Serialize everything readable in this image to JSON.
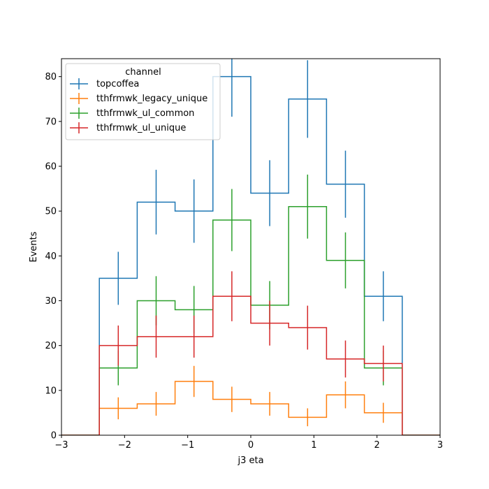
{
  "chart_data": {
    "type": "histogram-step",
    "xlabel": "j3 eta",
    "ylabel": "Events",
    "xlim": [
      -3,
      3
    ],
    "ylim": [
      0,
      84
    ],
    "xticks": [
      -3,
      -2,
      -1,
      0,
      1,
      2,
      3
    ],
    "xtick_labels": [
      "−3",
      "−2",
      "−1",
      "0",
      "1",
      "2",
      "3"
    ],
    "yticks": [
      0,
      10,
      20,
      30,
      40,
      50,
      60,
      70,
      80
    ],
    "ytick_labels": [
      "0",
      "10",
      "20",
      "30",
      "40",
      "50",
      "60",
      "70",
      "80"
    ],
    "bin_edges": [
      -3,
      -2.4,
      -1.8,
      -1.2,
      -0.6,
      0,
      0.6,
      1.2,
      1.8,
      2.4,
      3
    ],
    "legend": {
      "title": "channel",
      "placement": "upper-left"
    },
    "series": [
      {
        "name": "topcoffea",
        "color": "#1f77b4",
        "values": [
          0,
          35,
          52,
          50,
          80,
          54,
          75,
          56,
          31,
          0
        ]
      },
      {
        "name": "tthfrmwk_legacy_unique",
        "color": "#ff7f0e",
        "values": [
          0,
          6,
          7,
          12,
          8,
          7,
          4,
          9,
          5,
          0
        ]
      },
      {
        "name": "tthfrmwk_ul_common",
        "color": "#2ca02c",
        "values": [
          0,
          15,
          30,
          28,
          48,
          29,
          51,
          39,
          15,
          0
        ]
      },
      {
        "name": "tthfrmwk_ul_unique",
        "color": "#d62728",
        "values": [
          0,
          20,
          22,
          22,
          31,
          25,
          24,
          17,
          16,
          0
        ]
      }
    ]
  }
}
